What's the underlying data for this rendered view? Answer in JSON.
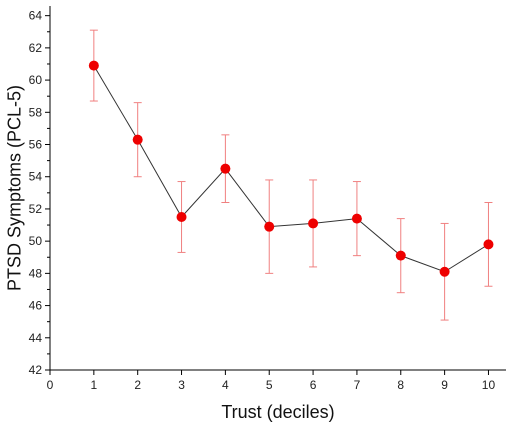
{
  "chart_data": {
    "type": "scatter",
    "xlabel": "Trust (deciles)",
    "ylabel": "PTSD Symptoms (PCL-5)",
    "xlim": [
      0,
      10.4
    ],
    "ylim": [
      42,
      64.6
    ],
    "x_ticks": [
      "0",
      "1",
      "2",
      "3",
      "4",
      "5",
      "6",
      "7",
      "8",
      "9",
      "10"
    ],
    "y_ticks": [
      "42",
      "44",
      "46",
      "48",
      "50",
      "52",
      "54",
      "56",
      "58",
      "60",
      "62",
      "64"
    ],
    "grid": false,
    "legend": "none",
    "series": [
      {
        "x": [
          1,
          2,
          3,
          4,
          5,
          6,
          7,
          8,
          9,
          10
        ],
        "y": [
          60.9,
          56.3,
          51.5,
          54.5,
          50.9,
          51.1,
          51.4,
          49.1,
          48.1,
          49.8
        ],
        "err_low": [
          58.7,
          54.0,
          49.3,
          52.4,
          48.0,
          48.4,
          49.1,
          46.8,
          45.1,
          47.2
        ],
        "err_high": [
          63.1,
          58.6,
          53.7,
          56.6,
          53.8,
          53.8,
          53.7,
          51.4,
          51.1,
          52.4
        ],
        "marker_color": "#ee0000",
        "line_color": "#333333",
        "error_bar_color": "#f08080"
      }
    ]
  }
}
